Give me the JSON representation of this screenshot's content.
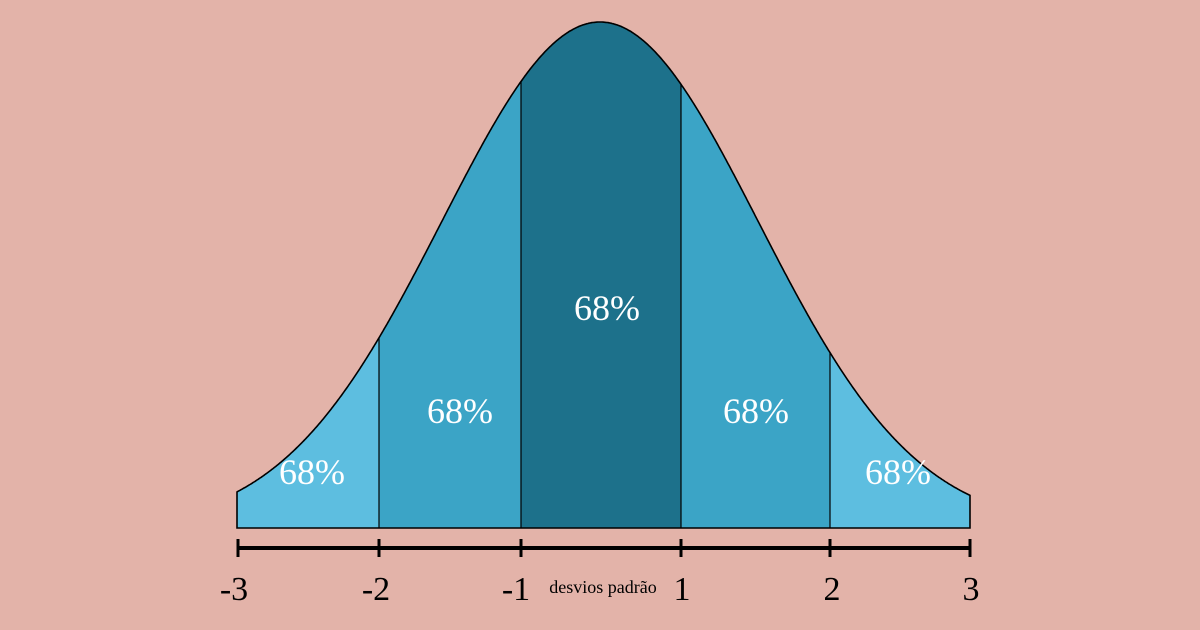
{
  "diagram": {
    "background_color": "#e3b3a9",
    "regions": [
      {
        "from": -3,
        "to": -2,
        "label": "68%",
        "color": "#5dbee0"
      },
      {
        "from": -2,
        "to": -1,
        "label": "68%",
        "color": "#3ba4c6"
      },
      {
        "from": -1,
        "to": 1,
        "label": "68%",
        "color": "#1d718b"
      },
      {
        "from": 1,
        "to": 2,
        "label": "68%",
        "color": "#3ba4c6"
      },
      {
        "from": 2,
        "to": 3,
        "label": "68%",
        "color": "#5dbee0"
      }
    ],
    "axis": {
      "ticks": [
        -3,
        -2,
        -1,
        1,
        2,
        3
      ],
      "tick_labels": [
        "-3",
        "-2",
        "-1",
        "1",
        "2",
        "3"
      ],
      "caption": "desvios padrão"
    }
  }
}
